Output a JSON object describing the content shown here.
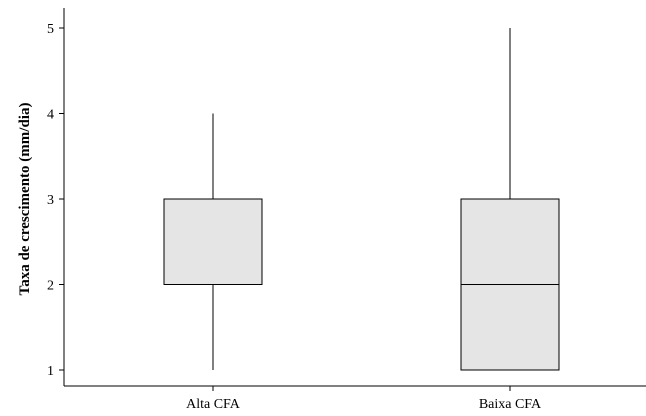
{
  "chart_data": {
    "type": "box",
    "title": "",
    "xlabel": "",
    "ylabel": "Taxa de crescimento (mm/dia)",
    "ylim": [
      0.85,
      5.25
    ],
    "yticks": [
      1,
      2,
      3,
      4,
      5
    ],
    "ytick_labels": [
      "1",
      "2",
      "3",
      "4",
      "5"
    ],
    "categories": [
      "Alta CFA",
      "Baixa CFA"
    ],
    "boxes": [
      {
        "category": "Alta CFA",
        "min": 1,
        "q1": 2,
        "median": 2,
        "q3": 3,
        "max": 4
      },
      {
        "category": "Baixa CFA",
        "min": 1,
        "q1": 1,
        "median": 2,
        "q3": 3,
        "max": 5
      }
    ],
    "box_fill": "#e5e5e5",
    "grid": false,
    "legend": "none"
  }
}
